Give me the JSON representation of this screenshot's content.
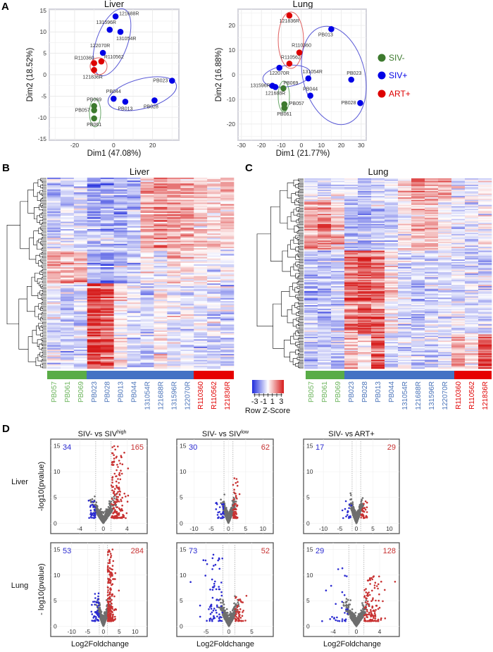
{
  "panels": {
    "a": "A",
    "b": "B",
    "c": "C",
    "d": "D"
  },
  "legend": [
    {
      "label": "SIV-",
      "color": "#3d7a2e"
    },
    {
      "label": "SIV+",
      "color": "#0000e6"
    },
    {
      "label": "ART+",
      "color": "#dd0000"
    }
  ],
  "colors": {
    "siv_neg": "#3d7a2e",
    "siv_pos": "#0000e6",
    "art": "#dd0000",
    "heat_green": "#59ac47",
    "heat_blue": "#4472c4",
    "heat_red": "#e60000",
    "volcano_up": "#c83232",
    "volcano_down": "#2b2bd1",
    "volcano_ns": "#6e6e6e"
  },
  "row_labels": {
    "liver": "Liver",
    "lung": "Lung"
  },
  "chart_data": [
    {
      "id": "pca-liver",
      "type": "scatter",
      "title": "Liver",
      "xlabel": "Dim1 (47.08%)",
      "ylabel": "Dim2 (18.52%)",
      "xlim": [
        -33,
        33.5
      ],
      "ylim": [
        -15.3,
        15.3
      ],
      "xticks": [
        -20,
        0,
        20
      ],
      "yticks": [
        -15,
        -10,
        -5,
        0,
        5,
        10,
        15
      ],
      "grid": true,
      "points": [
        {
          "label": "121688R",
          "group": "SIV+",
          "x": 1,
          "y": 13.6
        },
        {
          "label": "131596R",
          "group": "SIV+",
          "x": -2,
          "y": 10.5
        },
        {
          "label": "131054R",
          "group": "SIV+",
          "x": 3.5,
          "y": 10
        },
        {
          "label": "122070R",
          "group": "SIV+",
          "x": -5.5,
          "y": 5.1
        },
        {
          "label": "R110360",
          "group": "ART+",
          "x": -10,
          "y": 2.7
        },
        {
          "label": "R110562",
          "group": "ART+",
          "x": -6.3,
          "y": 3.1
        },
        {
          "label": "121836R",
          "group": "ART+",
          "x": -10,
          "y": 1.1
        },
        {
          "label": "PB023",
          "group": "SIV+",
          "x": 30,
          "y": -1.4
        },
        {
          "label": "PB044",
          "group": "SIV+",
          "x": 0,
          "y": -5.6
        },
        {
          "label": "PB013",
          "group": "SIV+",
          "x": 6,
          "y": -6.3
        },
        {
          "label": "PB028",
          "group": "SIV+",
          "x": 21,
          "y": -6
        },
        {
          "label": "PB069",
          "group": "SIV-",
          "x": -10,
          "y": -7.3
        },
        {
          "label": "PB057",
          "group": "SIV-",
          "x": -10,
          "y": -8.3
        },
        {
          "label": "PB061",
          "group": "SIV-",
          "x": -10,
          "y": -10.2
        }
      ]
    },
    {
      "id": "pca-lung",
      "type": "scatter",
      "title": "Lung",
      "xlabel": "Dim1 (21.77%)",
      "ylabel": "Dim2 (16.88%)",
      "xlim": [
        -31.7,
        32.5
      ],
      "ylim": [
        -26.6,
        26.6
      ],
      "xticks": [
        -30,
        -20,
        -10,
        0,
        10,
        20,
        30
      ],
      "yticks": [
        -20,
        -10,
        0,
        10,
        20
      ],
      "grid": true,
      "points": [
        {
          "label": "121836R",
          "group": "ART+",
          "x": -6,
          "y": 24
        },
        {
          "label": "PB013",
          "group": "SIV+",
          "x": 15,
          "y": 18.5
        },
        {
          "label": "R110360",
          "group": "ART+",
          "x": -1,
          "y": 9
        },
        {
          "label": "R110562",
          "group": "ART+",
          "x": -6,
          "y": 4.5
        },
        {
          "label": "122070R",
          "group": "SIV+",
          "x": -11,
          "y": 2.8
        },
        {
          "label": "131054R",
          "group": "SIV+",
          "x": 3.5,
          "y": -1.5
        },
        {
          "label": "PB023",
          "group": "SIV+",
          "x": 25,
          "y": -2
        },
        {
          "label": "131596R",
          "group": "SIV+",
          "x": -14.5,
          "y": -4.5
        },
        {
          "label": "121688R",
          "group": "SIV+",
          "x": -13,
          "y": -5
        },
        {
          "label": "PB069",
          "group": "SIV-",
          "x": -9,
          "y": -5.5
        },
        {
          "label": "PB044",
          "group": "SIV+",
          "x": 4.5,
          "y": -8.5
        },
        {
          "label": "PB057",
          "group": "SIV-",
          "x": -8.5,
          "y": -12
        },
        {
          "label": "PB061",
          "group": "SIV-",
          "x": -8.5,
          "y": -13.5
        },
        {
          "label": "PB028",
          "group": "SIV+",
          "x": 29.5,
          "y": -11.5
        }
      ]
    },
    {
      "id": "heatmap-liver",
      "type": "heatmap",
      "title": "Liver",
      "columns": [
        "PB057",
        "PB061",
        "PB069",
        "PB023",
        "PB028",
        "PB013",
        "PB044",
        "131054R",
        "121688R",
        "131596R",
        "122070R",
        "R110360",
        "R110562",
        "121836R"
      ],
      "column_groups": [
        "SIV-",
        "SIV-",
        "SIV-",
        "SIV+",
        "SIV+",
        "SIV+",
        "SIV+",
        "SIV+",
        "SIV+",
        "SIV+",
        "SIV+",
        "ART+",
        "ART+",
        "ART+"
      ],
      "row_dendrogram": true
    },
    {
      "id": "heatmap-lung",
      "type": "heatmap",
      "title": "Lung",
      "columns": [
        "PB057",
        "PB061",
        "PB069",
        "PB023",
        "PB028",
        "PB013",
        "PB044",
        "131054R",
        "121688R",
        "131596R",
        "122070R",
        "R110360",
        "R110562",
        "121836R"
      ],
      "column_groups": [
        "SIV-",
        "SIV-",
        "SIV-",
        "SIV+",
        "SIV+",
        "SIV+",
        "SIV+",
        "SIV+",
        "SIV+",
        "SIV+",
        "SIV+",
        "ART+",
        "ART+",
        "ART+"
      ],
      "row_dendrogram": true
    },
    {
      "id": "color-key",
      "type": "heatmap",
      "label": "Row Z-Score",
      "ticks": [
        -3,
        -1,
        1,
        3
      ],
      "range": [
        -3,
        3
      ],
      "low": "#1f2bdc",
      "mid": "#ffffff",
      "high": "#d61a1a"
    },
    {
      "id": "volcano-liver-high",
      "type": "scatter",
      "row": "Liver",
      "title": "SIV- vs SIV",
      "title_sup": "high",
      "ylabel": "-log10(pvalue)",
      "xlabel": "",
      "xlim": [
        -8.9,
        7.4
      ],
      "ylim": [
        -2,
        16.3
      ],
      "xticks": [
        -4,
        0,
        4
      ],
      "yticks": [
        0,
        5,
        10,
        15
      ],
      "down_count": "34",
      "up_count": "165"
    },
    {
      "id": "volcano-liver-low",
      "type": "scatter",
      "row": "Liver",
      "title": "SIV- vs SIV",
      "title_sup": "low",
      "ylabel": "",
      "xlabel": "",
      "xlim": [
        -15,
        13
      ],
      "ylim": [
        -2,
        16.3
      ],
      "xticks": [
        -10,
        -5,
        0,
        5,
        10
      ],
      "yticks": [
        0,
        5,
        10,
        15
      ],
      "down_count": "30",
      "up_count": "62"
    },
    {
      "id": "volcano-liver-art",
      "type": "scatter",
      "row": "Liver",
      "title": "SIV- vs ART+",
      "title_sup": "",
      "ylabel": "",
      "xlabel": "",
      "xlim": [
        -16,
        13
      ],
      "ylim": [
        -2,
        16.3
      ],
      "xticks": [
        -10,
        -5,
        0,
        5,
        10
      ],
      "yticks": [
        0,
        5,
        10,
        15
      ],
      "down_count": "17",
      "up_count": "29"
    },
    {
      "id": "volcano-lung-high",
      "type": "scatter",
      "row": "Lung",
      "title": "",
      "title_sup": "",
      "ylabel": "- log10(pvalue)",
      "xlabel": "Log2Foldchange",
      "xlim": [
        -16.6,
        13.8
      ],
      "ylim": [
        -2,
        16.3
      ],
      "xticks": [
        -10,
        -5,
        0,
        5,
        10
      ],
      "yticks": [
        0,
        5,
        10,
        15
      ],
      "down_count": "53",
      "up_count": "284"
    },
    {
      "id": "volcano-lung-low",
      "type": "scatter",
      "row": "Lung",
      "title": "",
      "title_sup": "",
      "ylabel": "",
      "xlabel": "Log2Foldchange",
      "xlim": [
        -11.4,
        9.7
      ],
      "ylim": [
        -2,
        16.3
      ],
      "xticks": [
        -5,
        0,
        5
      ],
      "yticks": [
        0,
        5,
        10,
        15
      ],
      "down_count": "73",
      "up_count": "52"
    },
    {
      "id": "volcano-lung-art",
      "type": "scatter",
      "row": "Lung",
      "title": "",
      "title_sup": "",
      "ylabel": "",
      "xlabel": "Log2Foldchange",
      "xlim": [
        -9.1,
        7.4
      ],
      "ylim": [
        -2,
        16.3
      ],
      "xticks": [
        -4,
        0,
        4
      ],
      "yticks": [
        0,
        5,
        10,
        15
      ],
      "down_count": "29",
      "up_count": "128"
    }
  ]
}
